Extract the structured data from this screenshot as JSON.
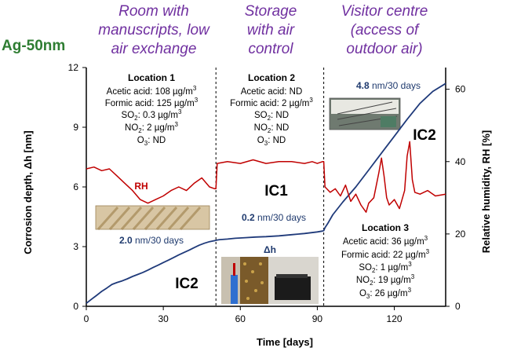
{
  "sample_label": "Ag-50nm",
  "zone_titles": [
    [
      "Room with",
      "manuscripts, low",
      "air exchange"
    ],
    [
      "Storage",
      "with air",
      "control"
    ],
    [
      "Visitor centre",
      "(access of",
      "outdoor air)"
    ]
  ],
  "locations": [
    {
      "title": "Location 1",
      "lines": [
        [
          "Acetic acid: 108 µg/m",
          "3"
        ],
        [
          "Formic acid: 125 µg/m",
          "3"
        ],
        [
          "SO",
          "2",
          ": 0.3 µg/m",
          "3"
        ],
        [
          "NO",
          "2",
          ": 2 µg/m",
          "3"
        ],
        [
          "O",
          "3",
          ": ND"
        ]
      ]
    },
    {
      "title": "Location 2",
      "lines": [
        [
          "Acetic acid: ND"
        ],
        [
          "Formic acid: 2 µg/m",
          "3"
        ],
        [
          "SO",
          "2",
          ": ND"
        ],
        [
          "NO",
          "2",
          ": ND"
        ],
        [
          "O",
          "3",
          ": ND"
        ]
      ]
    },
    {
      "title": "Location 3",
      "lines": [
        [
          "Acetic acid: 36 µg/m",
          "3"
        ],
        [
          "Formic acid: 22 µg/m",
          "3"
        ],
        [
          "SO",
          "2",
          ": 1 µg/m",
          "3"
        ],
        [
          "NO",
          "2",
          ": 19 µg/m",
          "3"
        ],
        [
          "O",
          "3",
          ": 26 µg/m",
          "3"
        ]
      ]
    }
  ],
  "rates": [
    {
      "value": "2.0",
      "unit": " nm/30 days"
    },
    {
      "value": "0.2",
      "unit": " nm/30 days"
    },
    {
      "value": "4.8",
      "unit": " nm/30 days"
    }
  ],
  "ic_labels": [
    "IC2",
    "IC1",
    "IC2"
  ],
  "rh_label": "RH",
  "dh_label": "Δh",
  "colors": {
    "corrosion": "#1f3a7a",
    "rh": "#c00000",
    "sample_label": "#2e7d32",
    "zone_titles": "#7030a0",
    "rate_text": "#1f3a6e"
  },
  "chart_data": {
    "type": "line",
    "xlabel": "Time [days]",
    "ylabel": "Corrosion depth, Δh [nm]",
    "y2label": "Relative humidity, RH [%]",
    "xlim": [
      0,
      140
    ],
    "ylim": [
      0,
      12
    ],
    "y2lim": [
      0,
      66
    ],
    "x_ticks": [
      0,
      30,
      60,
      90,
      120
    ],
    "y_ticks": [
      0,
      3,
      6,
      9,
      12
    ],
    "y2_ticks": [
      0,
      20,
      40,
      60
    ],
    "zone_boundaries": [
      50.5,
      92.5
    ],
    "series": [
      {
        "name": "Δh",
        "axis": "left",
        "x": [
          0,
          2,
          4,
          6,
          8,
          10,
          12,
          14,
          16,
          18,
          20,
          22,
          24,
          26,
          28,
          30,
          32,
          34,
          36,
          38,
          40,
          42,
          44,
          46,
          48,
          50,
          51,
          52,
          55,
          58,
          62,
          66,
          70,
          75,
          80,
          85,
          90,
          92,
          92.5,
          93,
          94,
          96,
          100,
          105,
          110,
          115,
          120,
          125,
          130,
          135,
          140
        ],
        "y": [
          0.15,
          0.35,
          0.55,
          0.75,
          0.92,
          1.1,
          1.2,
          1.28,
          1.38,
          1.5,
          1.6,
          1.7,
          1.82,
          1.95,
          2.07,
          2.2,
          2.32,
          2.45,
          2.58,
          2.7,
          2.82,
          2.95,
          3.07,
          3.17,
          3.25,
          3.3,
          3.33,
          3.35,
          3.38,
          3.42,
          3.45,
          3.48,
          3.5,
          3.54,
          3.6,
          3.66,
          3.74,
          3.78,
          3.8,
          3.95,
          4.15,
          4.6,
          5.25,
          6.0,
          6.85,
          7.7,
          8.55,
          9.4,
          10.2,
          10.8,
          11.2
        ]
      },
      {
        "name": "RH",
        "axis": "right",
        "x": [
          0,
          3,
          6,
          9,
          12,
          15,
          18,
          21,
          24,
          27,
          30,
          33,
          36,
          39,
          42,
          45,
          48,
          50,
          50.5,
          51,
          55,
          60,
          65,
          70,
          75,
          80,
          85,
          88,
          90,
          92,
          92.5,
          93,
          95,
          97,
          99,
          101,
          103,
          105,
          107,
          109,
          110,
          112,
          114,
          115,
          116,
          117,
          118,
          120,
          122,
          124,
          125,
          126,
          127,
          128,
          130,
          133,
          136,
          140
        ],
        "y": [
          38,
          38.5,
          37.5,
          38,
          36,
          34,
          32,
          29.5,
          28.5,
          29.5,
          30.5,
          32,
          33,
          32,
          34,
          35.5,
          33,
          32.5,
          32.5,
          39.5,
          40,
          39.5,
          40.5,
          39.5,
          40,
          40,
          39.5,
          40,
          39.5,
          40,
          40,
          33,
          31.5,
          32.5,
          30.5,
          33.5,
          29,
          31,
          28,
          26,
          28.5,
          30,
          37,
          41,
          36,
          30,
          28,
          29.5,
          27,
          32,
          41.5,
          45.5,
          35,
          31.5,
          31,
          32,
          30.5,
          31
        ]
      }
    ]
  }
}
